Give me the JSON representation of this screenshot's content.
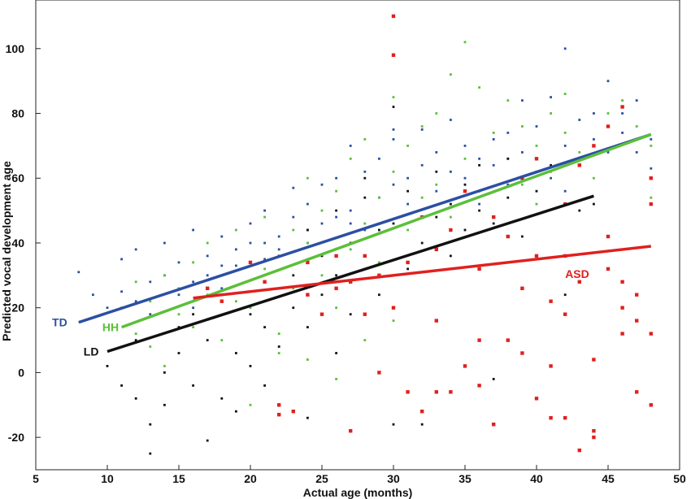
{
  "chart_data": {
    "type": "scatter",
    "xlabel": "Actual age (months)",
    "ylabel": "Predicted vocal development age",
    "xlim": [
      5,
      50
    ],
    "ylim": [
      -30,
      115
    ],
    "x_ticks": [
      5,
      10,
      15,
      20,
      25,
      30,
      35,
      40,
      45,
      50
    ],
    "y_ticks": [
      -20,
      0,
      20,
      40,
      60,
      80,
      100
    ],
    "x_tick_labels": [
      "5",
      "10",
      "15",
      "20",
      "25",
      "30",
      "35",
      "40",
      "45",
      "50"
    ],
    "y_tick_labels": [
      "-20",
      "0",
      "20",
      "40",
      "60",
      "80",
      "100"
    ],
    "grid": false,
    "legend": "none",
    "series": [
      {
        "name": "TD",
        "color": "#2b4fa2",
        "fit_line": [
          [
            8,
            15.5
          ],
          [
            48,
            73.5
          ]
        ],
        "label_position_data": [
          7.2,
          15.5
        ],
        "points": [
          [
            8,
            31
          ],
          [
            9,
            24
          ],
          [
            10,
            20
          ],
          [
            11,
            25
          ],
          [
            11,
            35
          ],
          [
            12,
            22
          ],
          [
            12,
            38
          ],
          [
            13,
            28
          ],
          [
            13,
            18
          ],
          [
            14,
            30
          ],
          [
            14,
            40
          ],
          [
            15,
            24
          ],
          [
            15,
            34
          ],
          [
            16,
            28
          ],
          [
            16,
            44
          ],
          [
            16,
            20
          ],
          [
            17,
            36
          ],
          [
            17,
            30
          ],
          [
            18,
            42
          ],
          [
            18,
            26
          ],
          [
            19,
            33
          ],
          [
            19,
            38
          ],
          [
            20,
            40
          ],
          [
            20,
            46
          ],
          [
            21,
            35
          ],
          [
            21,
            50
          ],
          [
            22,
            42
          ],
          [
            22,
            38
          ],
          [
            23,
            48
          ],
          [
            23,
            57
          ],
          [
            24,
            44
          ],
          [
            24,
            52
          ],
          [
            25,
            46
          ],
          [
            25,
            58
          ],
          [
            26,
            60
          ],
          [
            26,
            48
          ],
          [
            27,
            50
          ],
          [
            27,
            70
          ],
          [
            28,
            62
          ],
          [
            28,
            44
          ],
          [
            29,
            54
          ],
          [
            29,
            66
          ],
          [
            30,
            58
          ],
          [
            30,
            72
          ],
          [
            31,
            60
          ],
          [
            31,
            52
          ],
          [
            32,
            64
          ],
          [
            32,
            75
          ],
          [
            33,
            56
          ],
          [
            33,
            68
          ],
          [
            34,
            62
          ],
          [
            34,
            78
          ],
          [
            35,
            60
          ],
          [
            35,
            70
          ],
          [
            36,
            66
          ],
          [
            36,
            56
          ],
          [
            37,
            72
          ],
          [
            37,
            64
          ],
          [
            38,
            58
          ],
          [
            38,
            74
          ],
          [
            39,
            68
          ],
          [
            39,
            84
          ],
          [
            40,
            62
          ],
          [
            40,
            76
          ],
          [
            41,
            85
          ],
          [
            41,
            60
          ],
          [
            42,
            100
          ],
          [
            42,
            70
          ],
          [
            43,
            64
          ],
          [
            43,
            78
          ],
          [
            44,
            72
          ],
          [
            44,
            80
          ],
          [
            45,
            68
          ],
          [
            45,
            90
          ],
          [
            46,
            74
          ],
          [
            46,
            80
          ],
          [
            47,
            68
          ],
          [
            47,
            84
          ],
          [
            48,
            63
          ],
          [
            48,
            72
          ],
          [
            30,
            75
          ],
          [
            27,
            46
          ],
          [
            24,
            40
          ],
          [
            21,
            40
          ],
          [
            18,
            33
          ],
          [
            36,
            52
          ],
          [
            39,
            60
          ],
          [
            42,
            56
          ]
        ]
      },
      {
        "name": "HH",
        "color": "#5bbf3a",
        "fit_line": [
          [
            11,
            14
          ],
          [
            48,
            73.5
          ]
        ],
        "label_position_data": [
          10.8,
          14
        ],
        "points": [
          [
            11,
            20
          ],
          [
            12,
            12
          ],
          [
            12,
            28
          ],
          [
            13,
            8
          ],
          [
            13,
            22
          ],
          [
            14,
            2
          ],
          [
            14,
            30
          ],
          [
            15,
            18
          ],
          [
            15,
            26
          ],
          [
            16,
            34
          ],
          [
            16,
            14
          ],
          [
            17,
            24
          ],
          [
            17,
            40
          ],
          [
            18,
            10
          ],
          [
            18,
            30
          ],
          [
            19,
            22
          ],
          [
            19,
            44
          ],
          [
            20,
            -10
          ],
          [
            20,
            20
          ],
          [
            21,
            32
          ],
          [
            21,
            48
          ],
          [
            22,
            12
          ],
          [
            22,
            36
          ],
          [
            23,
            44
          ],
          [
            23,
            26
          ],
          [
            24,
            40
          ],
          [
            24,
            60
          ],
          [
            25,
            30
          ],
          [
            25,
            50
          ],
          [
            26,
            56
          ],
          [
            26,
            20
          ],
          [
            27,
            38
          ],
          [
            27,
            66
          ],
          [
            28,
            46
          ],
          [
            28,
            72
          ],
          [
            29,
            54
          ],
          [
            29,
            34
          ],
          [
            30,
            85
          ],
          [
            30,
            62
          ],
          [
            31,
            44
          ],
          [
            31,
            70
          ],
          [
            32,
            76
          ],
          [
            32,
            54
          ],
          [
            33,
            58
          ],
          [
            33,
            80
          ],
          [
            34,
            92
          ],
          [
            34,
            48
          ],
          [
            35,
            102
          ],
          [
            35,
            66
          ],
          [
            36,
            88
          ],
          [
            36,
            56
          ],
          [
            37,
            74
          ],
          [
            37,
            48
          ],
          [
            38,
            66
          ],
          [
            38,
            84
          ],
          [
            39,
            58
          ],
          [
            39,
            76
          ],
          [
            40,
            70
          ],
          [
            40,
            52
          ],
          [
            41,
            80
          ],
          [
            41,
            62
          ],
          [
            42,
            74
          ],
          [
            42,
            86
          ],
          [
            43,
            68
          ],
          [
            44,
            60
          ],
          [
            45,
            80
          ],
          [
            46,
            84
          ],
          [
            47,
            76
          ],
          [
            48,
            70
          ],
          [
            48,
            54
          ],
          [
            26,
            -2
          ],
          [
            24,
            4
          ],
          [
            22,
            6
          ],
          [
            28,
            10
          ],
          [
            30,
            16
          ]
        ]
      },
      {
        "name": "LD",
        "color": "#111111",
        "fit_line": [
          [
            10,
            6.5
          ],
          [
            44,
            54.5
          ]
        ],
        "label_position_data": [
          9.4,
          6.5
        ],
        "points": [
          [
            10,
            2
          ],
          [
            11,
            -4
          ],
          [
            12,
            10
          ],
          [
            12,
            -8
          ],
          [
            13,
            -16
          ],
          [
            13,
            -25
          ],
          [
            14,
            0
          ],
          [
            14,
            -10
          ],
          [
            15,
            6
          ],
          [
            15,
            14
          ],
          [
            16,
            -4
          ],
          [
            16,
            18
          ],
          [
            17,
            -21
          ],
          [
            17,
            10
          ],
          [
            18,
            -8
          ],
          [
            18,
            24
          ],
          [
            19,
            -12
          ],
          [
            19,
            6
          ],
          [
            20,
            2
          ],
          [
            20,
            18
          ],
          [
            21,
            14
          ],
          [
            21,
            -4
          ],
          [
            22,
            26
          ],
          [
            22,
            8
          ],
          [
            23,
            20
          ],
          [
            23,
            30
          ],
          [
            24,
            -14
          ],
          [
            24,
            14
          ],
          [
            25,
            24
          ],
          [
            25,
            36
          ],
          [
            26,
            30
          ],
          [
            26,
            6
          ],
          [
            27,
            40
          ],
          [
            27,
            18
          ],
          [
            28,
            36
          ],
          [
            28,
            54
          ],
          [
            29,
            24
          ],
          [
            29,
            44
          ],
          [
            30,
            -16
          ],
          [
            30,
            46
          ],
          [
            31,
            32
          ],
          [
            31,
            56
          ],
          [
            32,
            -16
          ],
          [
            32,
            40
          ],
          [
            33,
            48
          ],
          [
            33,
            62
          ],
          [
            34,
            52
          ],
          [
            34,
            36
          ],
          [
            35,
            58
          ],
          [
            35,
            44
          ],
          [
            36,
            64
          ],
          [
            36,
            50
          ],
          [
            37,
            -2
          ],
          [
            37,
            46
          ],
          [
            38,
            54
          ],
          [
            38,
            66
          ],
          [
            39,
            42
          ],
          [
            39,
            60
          ],
          [
            40,
            56
          ],
          [
            41,
            64
          ],
          [
            42,
            24
          ],
          [
            43,
            50
          ],
          [
            44,
            52
          ],
          [
            30,
            82
          ],
          [
            28,
            60
          ],
          [
            26,
            50
          ],
          [
            24,
            44
          ],
          [
            22,
            36
          ]
        ]
      },
      {
        "name": "ASD",
        "color": "#e0201e",
        "fit_line": [
          [
            16,
            23
          ],
          [
            48,
            39
          ]
        ],
        "label_position_data": [
          42,
          30.5
        ],
        "points": [
          [
            17,
            26
          ],
          [
            18,
            22
          ],
          [
            20,
            34
          ],
          [
            21,
            28
          ],
          [
            22,
            -10
          ],
          [
            22,
            -13
          ],
          [
            23,
            -12
          ],
          [
            24,
            24
          ],
          [
            24,
            34
          ],
          [
            25,
            18
          ],
          [
            26,
            26
          ],
          [
            26,
            36
          ],
          [
            27,
            -18
          ],
          [
            27,
            28
          ],
          [
            28,
            36
          ],
          [
            28,
            18
          ],
          [
            29,
            0
          ],
          [
            29,
            30
          ],
          [
            30,
            110
          ],
          [
            30,
            98
          ],
          [
            30,
            20
          ],
          [
            31,
            -6
          ],
          [
            31,
            34
          ],
          [
            32,
            -12
          ],
          [
            32,
            48
          ],
          [
            33,
            16
          ],
          [
            33,
            38
          ],
          [
            34,
            -6
          ],
          [
            34,
            44
          ],
          [
            35,
            2
          ],
          [
            35,
            56
          ],
          [
            36,
            -4
          ],
          [
            36,
            32
          ],
          [
            37,
            -16
          ],
          [
            37,
            48
          ],
          [
            38,
            10
          ],
          [
            38,
            42
          ],
          [
            39,
            6
          ],
          [
            39,
            60
          ],
          [
            40,
            -8
          ],
          [
            40,
            36
          ],
          [
            40,
            66
          ],
          [
            41,
            22
          ],
          [
            41,
            -14
          ],
          [
            42,
            18
          ],
          [
            42,
            52
          ],
          [
            42,
            -14
          ],
          [
            43,
            -24
          ],
          [
            43,
            28
          ],
          [
            43,
            64
          ],
          [
            44,
            -18
          ],
          [
            44,
            4
          ],
          [
            44,
            70
          ],
          [
            45,
            42
          ],
          [
            45,
            76
          ],
          [
            46,
            28
          ],
          [
            46,
            82
          ],
          [
            46,
            12
          ],
          [
            47,
            24
          ],
          [
            47,
            16
          ],
          [
            47,
            -6
          ],
          [
            48,
            -10
          ],
          [
            48,
            60
          ],
          [
            48,
            12
          ],
          [
            48,
            52
          ],
          [
            33,
            -6
          ],
          [
            36,
            10
          ],
          [
            39,
            26
          ],
          [
            42,
            36
          ],
          [
            45,
            32
          ],
          [
            41,
            2
          ],
          [
            44,
            -20
          ],
          [
            46,
            20
          ]
        ]
      }
    ]
  }
}
